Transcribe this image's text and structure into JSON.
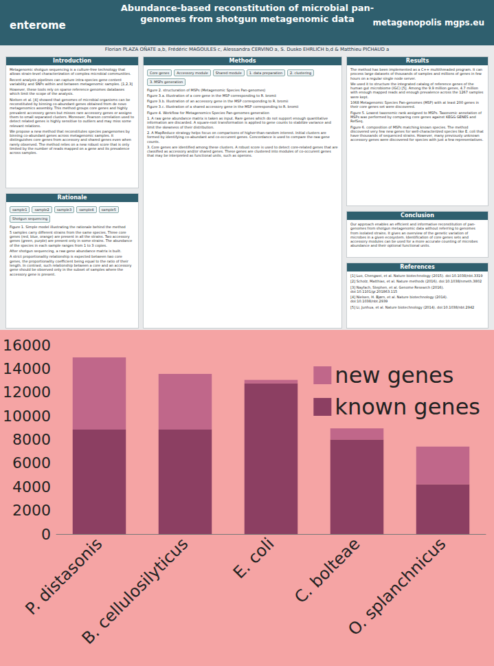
{
  "poster": {
    "title": "Abundance-based reconstitution of microbial pan-genomes from shotgun metagenomic data",
    "logos": [
      "enterome",
      "metagenopolis mgps.eu"
    ],
    "authors": "Florian PLAZA OÑATE a,b, Frédéric MAGOULES c, Alessandra CERVINO a, S. Dusko EHRLICH b,d & Matthieu PICHAUD a",
    "sections": [
      {
        "heading": "Introduction",
        "paragraphs": [
          "Metagenomic shotgun sequencing is a culture-free technology that allows strain-level characterization of complex microbial communities.",
          "Recent analysis pipelines can capture intra-species gene content variability and SNPs within and between metagenomic samples. [1,2,3]",
          "However, these tools rely on sparse reference genomes databases which limit the scope of the analysis.",
          "Nielsen et al. [4] showed that genomes of microbial organisms can be reconstituted by binning co-abundant genes obtained from de novo metagenomics assembly. This method groups core genes and highly prevalent accessory genes but misses rare accessory genes or assigns them to small separated clusters. Moreover, Pearson correlation used to detect related genes is highly sensitive to outliers and may miss some relevant relations.",
          "We propose a new method that reconstitutes species pangenomes by binning co-abundant genes across metagenomic samples. It distinguishes core genes from accessory and shared genes even when rarely observed. The method relies on a new robust score that is only limited by the number of reads mapped on a gene and its prevalence across samples."
        ],
        "labels": []
      },
      {
        "heading": "Rationale",
        "labels": [
          "sample1",
          "sample2",
          "sample3",
          "sample4",
          "sample5",
          "Shotgun sequencing"
        ],
        "paragraphs": [
          "Figure 1. Simple model illustrating the rationale behind the method",
          "5 samples carry different strains from the same species. Three core genes (red, blue, orange) are present in all the strains. Two accessory genes (green, purple) are present only in some strains. The abundance of the species in each sample ranges from 1 to 3 copies.",
          "After shotgun sequencing, a raw gene abundance matrix is built.",
          "A strict proportionality relationship is expected between two core genes, the proportionality coefficient being equal to the ratio of their length. In contrast, such relationship between a core and an accessory gene should be observed only in the subset of samples where the accessory gene is present."
        ]
      },
      {
        "heading": "Methods",
        "labels": [
          "Core genes",
          "Accessory module",
          "Shared module",
          "1. data preparation",
          "2. clustering",
          "3. MSPs generation"
        ],
        "paragraphs": [
          "Figure 2. structuration of MSPs (Metagenomic Species Pan-genomes)",
          "Figure 3.a. Illustration of a core gene in the MSP corresponding to R. bromii",
          "Figure 3.b. Illustration of an accessory gene in the MSP corresponding to R. bromii",
          "Figure 3.c. Illustration of a shared accessory gene in the MSP corresponding to R. bromii",
          "Figure 4. Workflow for Metagenomics Species Pan-genomes generation",
          "1. A raw gene abundance matrix is taken as input. Rare genes which do not support enough quantitative information are discarded. A square-root transformation is applied to gene counts to stabilize variance and limit the skewness of their distribution.",
          "2. A MapReduce strategy helps focus on comparisons of higher-than-random interest. Initial clusters are formed by identifying co-abundant and co-occurent genes. Concordance is used to compare the raw gene counts.",
          "3. Core genes are identified among these clusters. A robust score is used to detect core-related genes that are classified as accessory and/or shared genes. These genes are clustered into modules of co-occurent genes that may be interpreted as functional units, such as operons."
        ]
      },
      {
        "heading": "Results",
        "labels": [],
        "paragraphs": [
          "The method has been implemented as a C++ multithreaded program. It can process large datasets of thousands of samples and millions of genes in few hours on a regular single node server.",
          "We used it to structure the integrated catalog of reference genes of the human gut microbiome (IGC) [5]. Among the 9.9 million genes, 4.7 million with enough mapped reads and enough prevalence across the 1267 samples were kept.",
          "1068 Metagenomic Species Pan-genomes (MSP) with at least 200 genes in their core genes set were discovered.",
          "Figure 5. Lowest taxonomic rank assigned to MSPs. Taxonomic annotation of MSPs was performed by comparing core genes against KEGG GENES and RefSeq.",
          "Figure 6. composition of MSPs matching known species. The method discovered very few new genes for well-characterized species like E. coli that have thousands of sequenced strains. However, many previously unknown accessory genes were discovered for species with just a few representatives."
        ]
      },
      {
        "heading": "Conclusion",
        "labels": [],
        "paragraphs": [
          "Our approach enables an efficient and informative reconstitution of pan-genomes from shotgun metagenomic data without referring to genomes from isolated strains. It gives an overview of the genetic variation of microbes in a given ecosystem. Identification of core genes sets and accessory modules can be used for a more accurate counting of microbes abundance and their optional functional units."
        ]
      },
      {
        "heading": "References",
        "labels": [],
        "paragraphs": [
          "[1] Luo, Chengwei, et al. Nature biotechnology (2015). doi:10.1038/nbt.3319",
          "[2] Scholz, Matthias, et al. Nature methods (2016). doi:10.1038/nmeth.3802",
          "[3] Nayfach, Stephen, et al. Genome Research (2016). doi:10.1101/gr.201863.115",
          "[4] Nielsen, H. Bjørn, et al. Nature biotechnology (2014). doi:10.1038/nbt.2939",
          "[5] Li, Junhua, et al. Nature biotechnology (2014). doi:10.1038/nbt.2942"
        ]
      }
    ]
  },
  "chart_data": {
    "type": "bar",
    "stacked": true,
    "categories": [
      "P. distasonis",
      "B. cellulosilyticus",
      "E. coli",
      "C. bolteae",
      "O. splanchnicus"
    ],
    "series": [
      {
        "name": "known genes",
        "color": "#8c3f62",
        "values": [
          8850,
          8850,
          12750,
          8000,
          4200
        ]
      },
      {
        "name": "new genes",
        "color": "#c0678a",
        "values": [
          6100,
          4700,
          300,
          950,
          3200
        ]
      }
    ],
    "ylim": [
      0,
      16000
    ],
    "yticks": [
      0,
      2000,
      4000,
      6000,
      8000,
      10000,
      12000,
      14000,
      16000
    ],
    "grid": false,
    "legend": "top-right"
  }
}
